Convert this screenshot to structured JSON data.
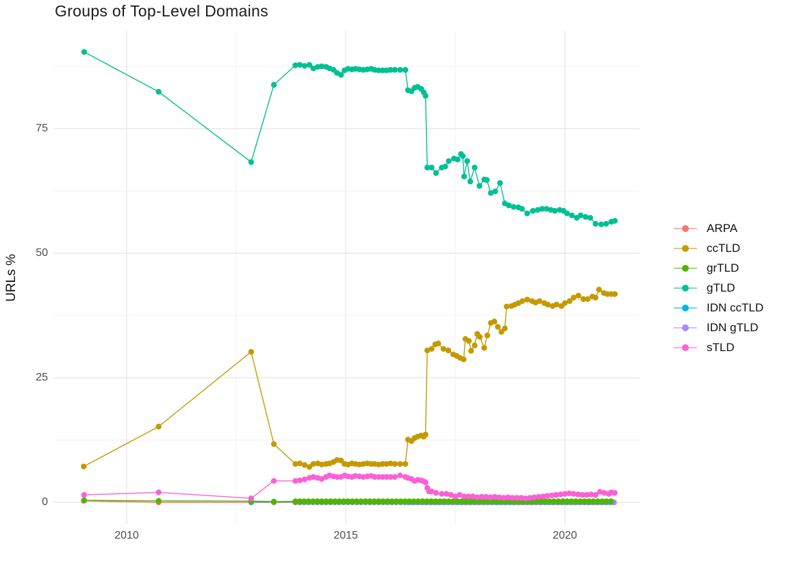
{
  "title": "Groups of Top-Level Domains",
  "y_axis": {
    "label": "URLs %",
    "ticks": [
      "0",
      "25",
      "50",
      "75"
    ]
  },
  "x_axis": {
    "ticks": [
      "2010",
      "2015",
      "2020"
    ]
  },
  "legend": {
    "items": [
      {
        "label": "ARPA",
        "color": "#F8766D"
      },
      {
        "label": "ccTLD",
        "color": "#C49A00"
      },
      {
        "label": "grTLD",
        "color": "#53B400"
      },
      {
        "label": "gTLD",
        "color": "#00C094"
      },
      {
        "label": "IDN ccTLD",
        "color": "#00B6EB"
      },
      {
        "label": "IDN gTLD",
        "color": "#A58AFF"
      },
      {
        "label": "sTLD",
        "color": "#FB61D7"
      }
    ]
  },
  "chart_data": {
    "type": "line",
    "title": "Groups of Top-Level Domains",
    "xlabel": "",
    "ylabel": "URLs %",
    "xlim": [
      2008.33,
      2021.72
    ],
    "ylim": [
      -4.6,
      94.4
    ],
    "x_ticks": [
      2010,
      2015,
      2020
    ],
    "x_minor": [
      2012.5,
      2017.5
    ],
    "y_ticks": [
      0,
      25,
      50,
      75
    ],
    "y_minor": [
      12.5,
      37.5,
      62.5,
      87.5
    ],
    "grid": true,
    "legend_position": "right",
    "marker": "point",
    "series": [
      {
        "name": "ARPA",
        "color": "#F8766D",
        "points": [
          [
            2009.02,
            0.3
          ],
          [
            2010.73,
            0.0
          ],
          [
            2012.84,
            0.0
          ],
          [
            2013.36,
            0.0
          ]
        ],
        "runs": [
          {
            "from": 2013.85,
            "to": 2021.14,
            "step": 0.1,
            "value": 0.0
          }
        ]
      },
      {
        "name": "IDN gTLD",
        "color": "#A58AFF",
        "points": [],
        "runs": [
          {
            "from": 2016.42,
            "to": 2021.14,
            "step": 0.1,
            "value": 0.0
          }
        ]
      },
      {
        "name": "IDN ccTLD",
        "color": "#00B6EB",
        "points": [
          [
            2012.84,
            0.1
          ],
          [
            2013.36,
            0.1
          ]
        ],
        "runs": [
          {
            "from": 2013.85,
            "to": 2021.14,
            "step": 0.1,
            "value": 0.1
          }
        ]
      },
      {
        "name": "grTLD",
        "color": "#53B400",
        "points": [
          [
            2009.03,
            0.4
          ],
          [
            2010.73,
            0.3
          ],
          [
            2012.84,
            0.25
          ],
          [
            2013.36,
            0.15
          ]
        ],
        "runs": [
          {
            "from": 2013.85,
            "to": 2021.14,
            "step": 0.1,
            "value": 0.2
          }
        ]
      },
      {
        "name": "ccTLD",
        "color": "#C49A00",
        "points": [
          [
            2009.02,
            7.2
          ],
          [
            2010.73,
            15.2
          ],
          [
            2012.84,
            30.2
          ],
          [
            2013.36,
            11.7
          ],
          [
            2013.85,
            7.7
          ],
          [
            2013.95,
            7.8
          ],
          [
            2014.06,
            7.5
          ],
          [
            2014.17,
            7.1
          ],
          [
            2014.26,
            7.7
          ],
          [
            2014.36,
            7.8
          ],
          [
            2014.45,
            7.6
          ],
          [
            2014.55,
            7.7
          ],
          [
            2014.63,
            7.8
          ],
          [
            2014.72,
            8.1
          ],
          [
            2014.8,
            8.5
          ],
          [
            2014.89,
            8.4
          ],
          [
            2014.97,
            7.7
          ],
          [
            2015.05,
            7.6
          ],
          [
            2015.14,
            7.8
          ],
          [
            2015.22,
            7.7
          ],
          [
            2015.31,
            7.6
          ],
          [
            2015.4,
            7.7
          ],
          [
            2015.49,
            7.8
          ],
          [
            2015.58,
            7.7
          ],
          [
            2015.66,
            7.7
          ],
          [
            2015.75,
            7.6
          ],
          [
            2015.84,
            7.7
          ],
          [
            2015.93,
            7.7
          ],
          [
            2016.02,
            7.8
          ],
          [
            2016.12,
            7.7
          ],
          [
            2016.24,
            7.7
          ],
          [
            2016.36,
            7.7
          ],
          [
            2016.42,
            12.6
          ],
          [
            2016.5,
            12.3
          ],
          [
            2016.57,
            12.9
          ],
          [
            2016.64,
            13.2
          ],
          [
            2016.72,
            13.4
          ],
          [
            2016.78,
            13.2
          ],
          [
            2016.82,
            13.6
          ],
          [
            2016.86,
            30.5
          ],
          [
            2016.96,
            30.8
          ],
          [
            2017.04,
            31.7
          ],
          [
            2017.11,
            31.9
          ],
          [
            2017.23,
            30.8
          ],
          [
            2017.34,
            30.5
          ],
          [
            2017.45,
            29.7
          ],
          [
            2017.53,
            29.4
          ],
          [
            2017.61,
            29.0
          ],
          [
            2017.69,
            28.7
          ],
          [
            2017.73,
            32.8
          ],
          [
            2017.81,
            32.4
          ],
          [
            2017.86,
            30.4
          ],
          [
            2017.94,
            31.5
          ],
          [
            2018.0,
            33.8
          ],
          [
            2018.06,
            33.2
          ],
          [
            2018.16,
            31.0
          ],
          [
            2018.23,
            33.5
          ],
          [
            2018.31,
            36.0
          ],
          [
            2018.39,
            36.3
          ],
          [
            2018.47,
            35.2
          ],
          [
            2018.55,
            34.2
          ],
          [
            2018.63,
            34.9
          ],
          [
            2018.67,
            39.3
          ],
          [
            2018.78,
            39.4
          ],
          [
            2018.86,
            39.7
          ],
          [
            2018.94,
            40.0
          ],
          [
            2019.03,
            40.4
          ],
          [
            2019.14,
            40.7
          ],
          [
            2019.25,
            40.4
          ],
          [
            2019.33,
            40.1
          ],
          [
            2019.42,
            40.4
          ],
          [
            2019.53,
            40.0
          ],
          [
            2019.61,
            39.7
          ],
          [
            2019.72,
            39.4
          ],
          [
            2019.81,
            39.7
          ],
          [
            2019.92,
            39.4
          ],
          [
            2020.0,
            40.0
          ],
          [
            2020.11,
            40.4
          ],
          [
            2020.2,
            41.1
          ],
          [
            2020.31,
            41.5
          ],
          [
            2020.42,
            40.8
          ],
          [
            2020.52,
            40.8
          ],
          [
            2020.63,
            41.3
          ],
          [
            2020.7,
            41.1
          ],
          [
            2020.78,
            42.7
          ],
          [
            2020.89,
            42.0
          ],
          [
            2020.97,
            41.8
          ],
          [
            2021.06,
            41.8
          ],
          [
            2021.14,
            41.8
          ]
        ]
      },
      {
        "name": "gTLD",
        "color": "#00C094",
        "points": [
          [
            2009.03,
            90.4
          ],
          [
            2010.73,
            82.4
          ],
          [
            2012.84,
            68.3
          ],
          [
            2013.36,
            83.8
          ],
          [
            2013.85,
            87.7
          ],
          [
            2013.95,
            87.8
          ],
          [
            2014.06,
            87.6
          ],
          [
            2014.17,
            87.8
          ],
          [
            2014.26,
            87.1
          ],
          [
            2014.36,
            87.4
          ],
          [
            2014.45,
            87.5
          ],
          [
            2014.55,
            87.4
          ],
          [
            2014.63,
            87.1
          ],
          [
            2014.72,
            86.8
          ],
          [
            2014.8,
            86.2
          ],
          [
            2014.89,
            85.8
          ],
          [
            2014.97,
            86.7
          ],
          [
            2015.05,
            87.0
          ],
          [
            2015.14,
            86.9
          ],
          [
            2015.22,
            87.0
          ],
          [
            2015.31,
            86.9
          ],
          [
            2015.4,
            86.8
          ],
          [
            2015.49,
            86.9
          ],
          [
            2015.58,
            87.0
          ],
          [
            2015.66,
            86.8
          ],
          [
            2015.75,
            86.7
          ],
          [
            2015.84,
            86.7
          ],
          [
            2015.93,
            86.7
          ],
          [
            2016.02,
            86.8
          ],
          [
            2016.12,
            86.8
          ],
          [
            2016.24,
            86.8
          ],
          [
            2016.36,
            86.8
          ],
          [
            2016.42,
            82.7
          ],
          [
            2016.5,
            82.5
          ],
          [
            2016.57,
            83.2
          ],
          [
            2016.64,
            83.4
          ],
          [
            2016.72,
            83.0
          ],
          [
            2016.78,
            82.3
          ],
          [
            2016.82,
            81.6
          ],
          [
            2016.86,
            67.2
          ],
          [
            2016.96,
            67.2
          ],
          [
            2017.06,
            66.1
          ],
          [
            2017.19,
            67.2
          ],
          [
            2017.27,
            67.4
          ],
          [
            2017.35,
            68.5
          ],
          [
            2017.47,
            69.0
          ],
          [
            2017.55,
            68.8
          ],
          [
            2017.63,
            69.9
          ],
          [
            2017.67,
            69.5
          ],
          [
            2017.7,
            65.4
          ],
          [
            2017.77,
            68.5
          ],
          [
            2017.84,
            64.4
          ],
          [
            2017.94,
            67.2
          ],
          [
            2018.05,
            63.5
          ],
          [
            2018.16,
            64.8
          ],
          [
            2018.22,
            64.7
          ],
          [
            2018.31,
            62.1
          ],
          [
            2018.41,
            62.4
          ],
          [
            2018.52,
            64.1
          ],
          [
            2018.63,
            60.0
          ],
          [
            2018.72,
            59.6
          ],
          [
            2018.83,
            59.3
          ],
          [
            2018.94,
            59.2
          ],
          [
            2019.02,
            58.9
          ],
          [
            2019.14,
            58.0
          ],
          [
            2019.27,
            58.5
          ],
          [
            2019.38,
            58.7
          ],
          [
            2019.48,
            58.9
          ],
          [
            2019.58,
            58.9
          ],
          [
            2019.68,
            58.7
          ],
          [
            2019.77,
            58.5
          ],
          [
            2019.88,
            58.7
          ],
          [
            2019.97,
            58.5
          ],
          [
            2020.05,
            58.0
          ],
          [
            2020.16,
            57.6
          ],
          [
            2020.27,
            57.1
          ],
          [
            2020.36,
            57.6
          ],
          [
            2020.47,
            57.3
          ],
          [
            2020.58,
            57.1
          ],
          [
            2020.7,
            55.9
          ],
          [
            2020.83,
            55.8
          ],
          [
            2020.94,
            55.9
          ],
          [
            2021.06,
            56.3
          ],
          [
            2021.14,
            56.5
          ]
        ]
      },
      {
        "name": "sTLD",
        "color": "#FB61D7",
        "points": [
          [
            2009.03,
            1.5
          ],
          [
            2010.73,
            2.0
          ],
          [
            2012.84,
            0.8
          ],
          [
            2013.36,
            4.3
          ],
          [
            2013.85,
            4.3
          ],
          [
            2013.95,
            4.4
          ],
          [
            2014.06,
            4.6
          ],
          [
            2014.17,
            4.9
          ],
          [
            2014.26,
            5.1
          ],
          [
            2014.36,
            4.9
          ],
          [
            2014.45,
            4.7
          ],
          [
            2014.55,
            5.1
          ],
          [
            2014.63,
            5.4
          ],
          [
            2014.72,
            5.2
          ],
          [
            2014.8,
            5.1
          ],
          [
            2014.89,
            5.1
          ],
          [
            2014.97,
            5.4
          ],
          [
            2015.05,
            5.2
          ],
          [
            2015.14,
            5.1
          ],
          [
            2015.22,
            5.3
          ],
          [
            2015.31,
            5.2
          ],
          [
            2015.4,
            5.1
          ],
          [
            2015.49,
            5.2
          ],
          [
            2015.58,
            5.3
          ],
          [
            2015.66,
            5.1
          ],
          [
            2015.75,
            5.1
          ],
          [
            2015.84,
            5.1
          ],
          [
            2015.93,
            5.1
          ],
          [
            2016.02,
            5.1
          ],
          [
            2016.12,
            5.1
          ],
          [
            2016.24,
            5.4
          ],
          [
            2016.36,
            5.1
          ],
          [
            2016.42,
            4.9
          ],
          [
            2016.5,
            4.7
          ],
          [
            2016.57,
            4.3
          ],
          [
            2016.64,
            4.5
          ],
          [
            2016.72,
            4.4
          ],
          [
            2016.78,
            4.2
          ],
          [
            2016.82,
            4.0
          ],
          [
            2016.86,
            2.9
          ],
          [
            2016.9,
            2.2
          ],
          [
            2016.96,
            2.2
          ],
          [
            2017.06,
            1.9
          ],
          [
            2017.19,
            1.7
          ],
          [
            2017.3,
            1.7
          ],
          [
            2017.4,
            1.5
          ],
          [
            2017.5,
            1.2
          ],
          [
            2017.6,
            1.5
          ],
          [
            2017.7,
            1.2
          ],
          [
            2017.8,
            1.2
          ],
          [
            2017.9,
            1.2
          ],
          [
            2018.0,
            1.0
          ],
          [
            2018.1,
            1.1
          ],
          [
            2018.2,
            1.1
          ],
          [
            2018.3,
            1.0
          ],
          [
            2018.4,
            1.1
          ],
          [
            2018.5,
            1.0
          ],
          [
            2018.6,
            0.9
          ],
          [
            2018.7,
            1.0
          ],
          [
            2018.8,
            0.9
          ],
          [
            2018.9,
            0.9
          ],
          [
            2019.0,
            0.9
          ],
          [
            2019.1,
            0.8
          ],
          [
            2019.2,
            0.9
          ],
          [
            2019.3,
            1.0
          ],
          [
            2019.4,
            1.1
          ],
          [
            2019.5,
            1.2
          ],
          [
            2019.6,
            1.3
          ],
          [
            2019.7,
            1.4
          ],
          [
            2019.8,
            1.5
          ],
          [
            2019.9,
            1.6
          ],
          [
            2020.0,
            1.7
          ],
          [
            2020.1,
            1.8
          ],
          [
            2020.2,
            1.7
          ],
          [
            2020.3,
            1.6
          ],
          [
            2020.4,
            1.5
          ],
          [
            2020.5,
            1.5
          ],
          [
            2020.6,
            1.6
          ],
          [
            2020.7,
            1.5
          ],
          [
            2020.8,
            2.1
          ],
          [
            2020.9,
            1.9
          ],
          [
            2021.0,
            1.7
          ],
          [
            2021.06,
            2.0
          ],
          [
            2021.14,
            1.9
          ]
        ]
      }
    ]
  }
}
